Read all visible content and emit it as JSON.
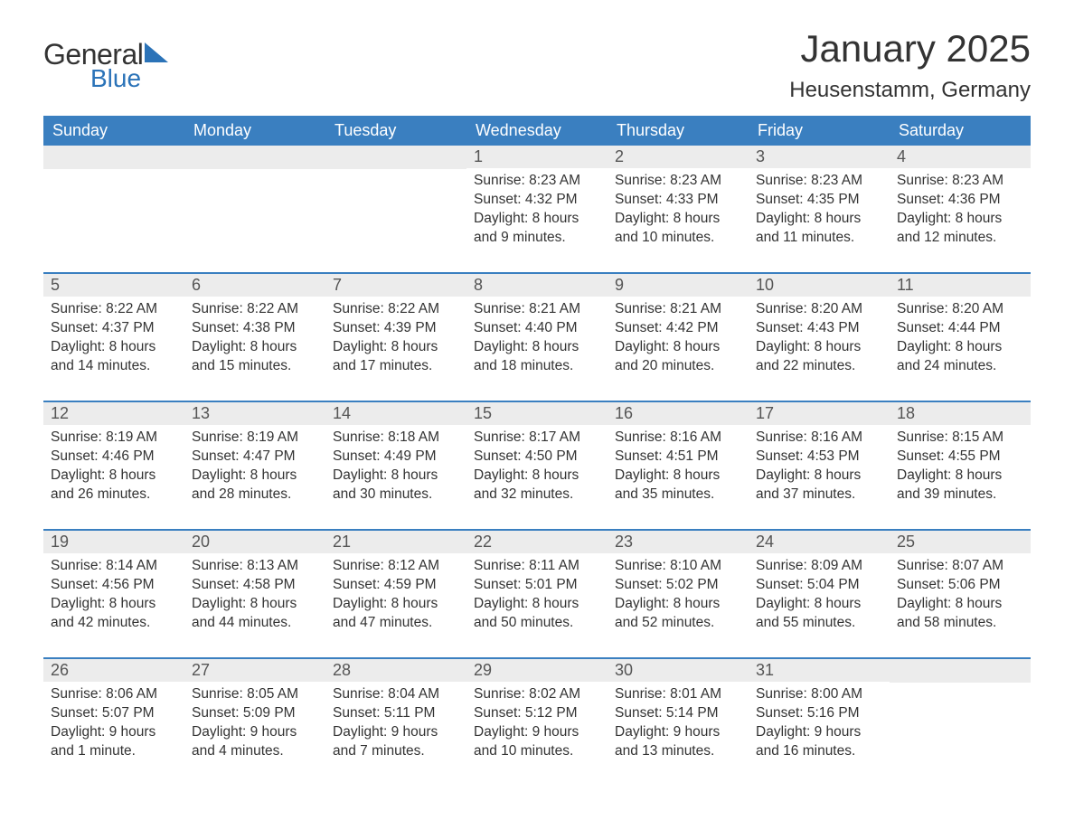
{
  "logo": {
    "text_general": "General",
    "text_blue": "Blue",
    "accent_color": "#2b73b8"
  },
  "title": {
    "month_year": "January 2025",
    "location": "Heusenstamm, Germany"
  },
  "colors": {
    "header_bg": "#3a7fc0",
    "header_text": "#ffffff",
    "daynum_bg": "#ececec",
    "border_accent": "#3a7fc0",
    "body_text": "#333333",
    "page_bg": "#ffffff"
  },
  "typography": {
    "month_title_fontsize": 42,
    "location_fontsize": 24,
    "day_header_fontsize": 18,
    "day_number_fontsize": 18,
    "day_content_fontsize": 15.5
  },
  "day_headers": [
    "Sunday",
    "Monday",
    "Tuesday",
    "Wednesday",
    "Thursday",
    "Friday",
    "Saturday"
  ],
  "weeks": [
    [
      null,
      null,
      null,
      {
        "n": "1",
        "sunrise": "Sunrise: 8:23 AM",
        "sunset": "Sunset: 4:32 PM",
        "daylight": "Daylight: 8 hours and 9 minutes."
      },
      {
        "n": "2",
        "sunrise": "Sunrise: 8:23 AM",
        "sunset": "Sunset: 4:33 PM",
        "daylight": "Daylight: 8 hours and 10 minutes."
      },
      {
        "n": "3",
        "sunrise": "Sunrise: 8:23 AM",
        "sunset": "Sunset: 4:35 PM",
        "daylight": "Daylight: 8 hours and 11 minutes."
      },
      {
        "n": "4",
        "sunrise": "Sunrise: 8:23 AM",
        "sunset": "Sunset: 4:36 PM",
        "daylight": "Daylight: 8 hours and 12 minutes."
      }
    ],
    [
      {
        "n": "5",
        "sunrise": "Sunrise: 8:22 AM",
        "sunset": "Sunset: 4:37 PM",
        "daylight": "Daylight: 8 hours and 14 minutes."
      },
      {
        "n": "6",
        "sunrise": "Sunrise: 8:22 AM",
        "sunset": "Sunset: 4:38 PM",
        "daylight": "Daylight: 8 hours and 15 minutes."
      },
      {
        "n": "7",
        "sunrise": "Sunrise: 8:22 AM",
        "sunset": "Sunset: 4:39 PM",
        "daylight": "Daylight: 8 hours and 17 minutes."
      },
      {
        "n": "8",
        "sunrise": "Sunrise: 8:21 AM",
        "sunset": "Sunset: 4:40 PM",
        "daylight": "Daylight: 8 hours and 18 minutes."
      },
      {
        "n": "9",
        "sunrise": "Sunrise: 8:21 AM",
        "sunset": "Sunset: 4:42 PM",
        "daylight": "Daylight: 8 hours and 20 minutes."
      },
      {
        "n": "10",
        "sunrise": "Sunrise: 8:20 AM",
        "sunset": "Sunset: 4:43 PM",
        "daylight": "Daylight: 8 hours and 22 minutes."
      },
      {
        "n": "11",
        "sunrise": "Sunrise: 8:20 AM",
        "sunset": "Sunset: 4:44 PM",
        "daylight": "Daylight: 8 hours and 24 minutes."
      }
    ],
    [
      {
        "n": "12",
        "sunrise": "Sunrise: 8:19 AM",
        "sunset": "Sunset: 4:46 PM",
        "daylight": "Daylight: 8 hours and 26 minutes."
      },
      {
        "n": "13",
        "sunrise": "Sunrise: 8:19 AM",
        "sunset": "Sunset: 4:47 PM",
        "daylight": "Daylight: 8 hours and 28 minutes."
      },
      {
        "n": "14",
        "sunrise": "Sunrise: 8:18 AM",
        "sunset": "Sunset: 4:49 PM",
        "daylight": "Daylight: 8 hours and 30 minutes."
      },
      {
        "n": "15",
        "sunrise": "Sunrise: 8:17 AM",
        "sunset": "Sunset: 4:50 PM",
        "daylight": "Daylight: 8 hours and 32 minutes."
      },
      {
        "n": "16",
        "sunrise": "Sunrise: 8:16 AM",
        "sunset": "Sunset: 4:51 PM",
        "daylight": "Daylight: 8 hours and 35 minutes."
      },
      {
        "n": "17",
        "sunrise": "Sunrise: 8:16 AM",
        "sunset": "Sunset: 4:53 PM",
        "daylight": "Daylight: 8 hours and 37 minutes."
      },
      {
        "n": "18",
        "sunrise": "Sunrise: 8:15 AM",
        "sunset": "Sunset: 4:55 PM",
        "daylight": "Daylight: 8 hours and 39 minutes."
      }
    ],
    [
      {
        "n": "19",
        "sunrise": "Sunrise: 8:14 AM",
        "sunset": "Sunset: 4:56 PM",
        "daylight": "Daylight: 8 hours and 42 minutes."
      },
      {
        "n": "20",
        "sunrise": "Sunrise: 8:13 AM",
        "sunset": "Sunset: 4:58 PM",
        "daylight": "Daylight: 8 hours and 44 minutes."
      },
      {
        "n": "21",
        "sunrise": "Sunrise: 8:12 AM",
        "sunset": "Sunset: 4:59 PM",
        "daylight": "Daylight: 8 hours and 47 minutes."
      },
      {
        "n": "22",
        "sunrise": "Sunrise: 8:11 AM",
        "sunset": "Sunset: 5:01 PM",
        "daylight": "Daylight: 8 hours and 50 minutes."
      },
      {
        "n": "23",
        "sunrise": "Sunrise: 8:10 AM",
        "sunset": "Sunset: 5:02 PM",
        "daylight": "Daylight: 8 hours and 52 minutes."
      },
      {
        "n": "24",
        "sunrise": "Sunrise: 8:09 AM",
        "sunset": "Sunset: 5:04 PM",
        "daylight": "Daylight: 8 hours and 55 minutes."
      },
      {
        "n": "25",
        "sunrise": "Sunrise: 8:07 AM",
        "sunset": "Sunset: 5:06 PM",
        "daylight": "Daylight: 8 hours and 58 minutes."
      }
    ],
    [
      {
        "n": "26",
        "sunrise": "Sunrise: 8:06 AM",
        "sunset": "Sunset: 5:07 PM",
        "daylight": "Daylight: 9 hours and 1 minute."
      },
      {
        "n": "27",
        "sunrise": "Sunrise: 8:05 AM",
        "sunset": "Sunset: 5:09 PM",
        "daylight": "Daylight: 9 hours and 4 minutes."
      },
      {
        "n": "28",
        "sunrise": "Sunrise: 8:04 AM",
        "sunset": "Sunset: 5:11 PM",
        "daylight": "Daylight: 9 hours and 7 minutes."
      },
      {
        "n": "29",
        "sunrise": "Sunrise: 8:02 AM",
        "sunset": "Sunset: 5:12 PM",
        "daylight": "Daylight: 9 hours and 10 minutes."
      },
      {
        "n": "30",
        "sunrise": "Sunrise: 8:01 AM",
        "sunset": "Sunset: 5:14 PM",
        "daylight": "Daylight: 9 hours and 13 minutes."
      },
      {
        "n": "31",
        "sunrise": "Sunrise: 8:00 AM",
        "sunset": "Sunset: 5:16 PM",
        "daylight": "Daylight: 9 hours and 16 minutes."
      },
      null
    ]
  ]
}
